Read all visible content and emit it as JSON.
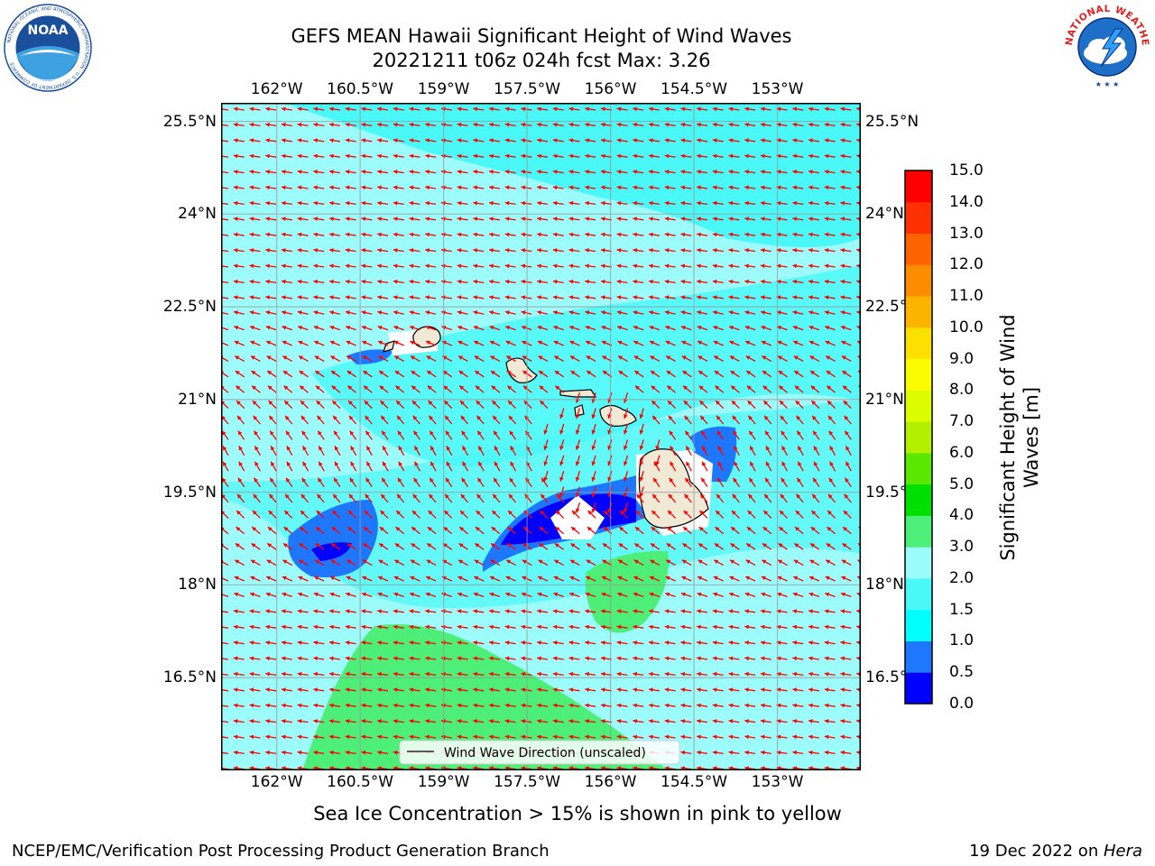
{
  "header": {
    "title_line1": "GEFS MEAN Hawaii Significant Height of Wind Waves",
    "title_line2": "20221211 t06z 024h fcst   Max: 3.26"
  },
  "logos": {
    "noaa": {
      "text": "NOAA",
      "ring_text": "NATIONAL OCEANIC AND ATMOSPHERIC ADMINISTRATION · U.S. DEPARTMENT OF COMMERCE",
      "color": "#1a4f9c"
    },
    "nws": {
      "ring_text": "NATIONAL WEATHER SERVICE",
      "color": "#e02020"
    }
  },
  "map": {
    "lon_range": [
      -163,
      -151.5
    ],
    "lat_range": [
      15.0,
      25.8
    ],
    "lon_ticks": [
      "162°W",
      "160.5°W",
      "159°W",
      "157.5°W",
      "156°W",
      "154.5°W",
      "153°W"
    ],
    "lon_tick_values": [
      -162,
      -160.5,
      -159,
      -157.5,
      -156,
      -154.5,
      -153
    ],
    "lat_ticks": [
      "25.5°N",
      "24°N",
      "22.5°N",
      "21°N",
      "19.5°N",
      "18°N",
      "16.5°N"
    ],
    "lat_tick_values": [
      25.5,
      24,
      22.5,
      21,
      19.5,
      18,
      16.5
    ],
    "ocean_color": "#9cfcfc",
    "land_color": "#efe9d6",
    "arrow_color": "#ff0000",
    "gridlines": true,
    "legend": {
      "label": "Wind Wave Direction (unscaled)",
      "position": "lower-center"
    }
  },
  "colorbar": {
    "label_line1": "Significant Height of Wind",
    "label_line2": "Waves [m]",
    "ticks": [
      "15.0",
      "14.0",
      "13.0",
      "12.0",
      "11.0",
      "10.0",
      "9.0",
      "8.0",
      "7.0",
      "6.0",
      "5.0",
      "4.0",
      "3.0",
      "2.0",
      "1.5",
      "1.0",
      "0.5",
      "0.0"
    ],
    "colors_bottom_to_top": [
      "#0000ff",
      "#1e78ff",
      "#00ffff",
      "#4bf8f8",
      "#9cfcfc",
      "#4eef78",
      "#00e000",
      "#5ae800",
      "#b2f000",
      "#dcfc00",
      "#fcfc00",
      "#fce000",
      "#fcb400",
      "#fc8c00",
      "#fc6400",
      "#fc3000",
      "#fc0000"
    ]
  },
  "footer": {
    "sea_ice_note": "Sea Ice Concentration > 15% is shown in pink to yellow",
    "credit": "NCEP/EMC/Verification Post Processing Product Generation Branch",
    "date": "19 Dec 2022 on ",
    "machine": "Hera"
  }
}
